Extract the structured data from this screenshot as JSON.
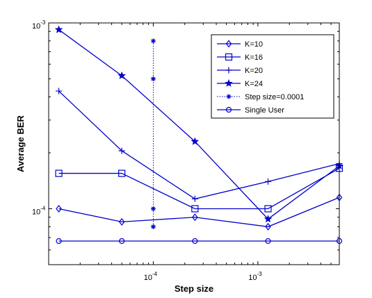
{
  "chart_data": {
    "type": "line",
    "title": "",
    "xlabel": "Step size",
    "ylabel": "Average BER",
    "x_scale": "log",
    "y_scale": "log",
    "xlim": [
      1e-05,
      0.006
    ],
    "ylim": [
      5e-05,
      0.001
    ],
    "x_tick_labels": [
      {
        "value": 0.0001,
        "label": "10",
        "exp": "-4"
      },
      {
        "value": 0.001,
        "label": "10",
        "exp": "-3"
      }
    ],
    "y_tick_labels": [
      {
        "value": 0.0001,
        "label": "10",
        "exp": "-4"
      },
      {
        "value": 0.001,
        "label": "10",
        "exp": "-3"
      }
    ],
    "grid": false,
    "legend_position": "top-right",
    "color": "#0000cc",
    "series": [
      {
        "name": "K=10",
        "marker": "diamond",
        "linestyle": "solid",
        "x": [
          1.25e-05,
          5e-05,
          0.00025,
          0.00125,
          0.006
        ],
        "y": [
          0.0001,
          8.5e-05,
          9e-05,
          8e-05,
          0.000115
        ]
      },
      {
        "name": "K=16",
        "marker": "square",
        "linestyle": "solid",
        "x": [
          1.25e-05,
          5e-05,
          0.00025,
          0.00125,
          0.006
        ],
        "y": [
          0.000155,
          0.000155,
          0.0001,
          0.0001,
          0.000165
        ]
      },
      {
        "name": "K=20",
        "marker": "plus",
        "linestyle": "solid",
        "x": [
          1.25e-05,
          5e-05,
          0.00025,
          0.00125,
          0.006
        ],
        "y": [
          0.00043,
          0.000205,
          0.000113,
          0.00014,
          0.000175
        ]
      },
      {
        "name": "K=24",
        "marker": "star",
        "linestyle": "solid",
        "x": [
          1.25e-05,
          5e-05,
          0.00025,
          0.00125,
          0.006
        ],
        "y": [
          0.00092,
          0.00052,
          0.00023,
          8.8e-05,
          0.00017
        ]
      },
      {
        "name": "Step size=0.0001",
        "marker": "asterisk",
        "linestyle": "dotted",
        "x": [
          0.0001,
          0.0001,
          0.0001,
          0.0001
        ],
        "y": [
          0.0008,
          0.0005,
          0.0001,
          8e-05
        ]
      },
      {
        "name": "Single User",
        "marker": "circle",
        "linestyle": "solid",
        "x": [
          1.25e-05,
          5e-05,
          0.00025,
          0.00125,
          0.006
        ],
        "y": [
          6.7e-05,
          6.7e-05,
          6.7e-05,
          6.7e-05,
          6.7e-05
        ]
      }
    ]
  }
}
